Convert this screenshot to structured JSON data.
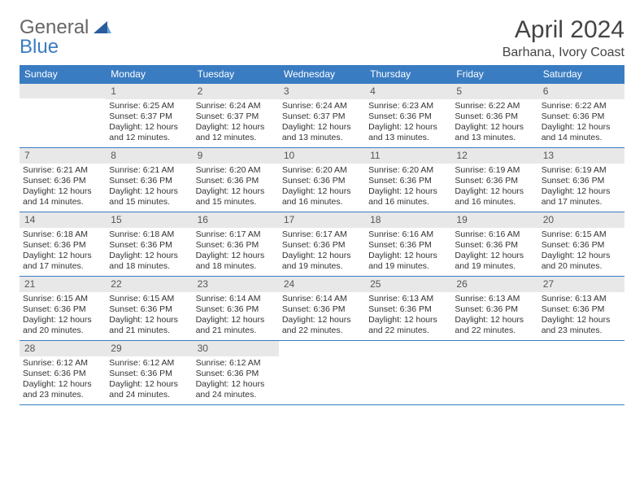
{
  "logo": {
    "general": "General",
    "blue": "Blue"
  },
  "title": "April 2024",
  "location": "Barhana, Ivory Coast",
  "colors": {
    "header_bg": "#3a7cc2",
    "header_text": "#ffffff",
    "daynum_bg": "#e8e8e8",
    "border": "#3a7cc2"
  },
  "day_headers": [
    "Sunday",
    "Monday",
    "Tuesday",
    "Wednesday",
    "Thursday",
    "Friday",
    "Saturday"
  ],
  "weeks": [
    [
      null,
      {
        "n": "1",
        "sr": "Sunrise: 6:25 AM",
        "ss": "Sunset: 6:37 PM",
        "dl1": "Daylight: 12 hours",
        "dl2": "and 12 minutes."
      },
      {
        "n": "2",
        "sr": "Sunrise: 6:24 AM",
        "ss": "Sunset: 6:37 PM",
        "dl1": "Daylight: 12 hours",
        "dl2": "and 12 minutes."
      },
      {
        "n": "3",
        "sr": "Sunrise: 6:24 AM",
        "ss": "Sunset: 6:37 PM",
        "dl1": "Daylight: 12 hours",
        "dl2": "and 13 minutes."
      },
      {
        "n": "4",
        "sr": "Sunrise: 6:23 AM",
        "ss": "Sunset: 6:36 PM",
        "dl1": "Daylight: 12 hours",
        "dl2": "and 13 minutes."
      },
      {
        "n": "5",
        "sr": "Sunrise: 6:22 AM",
        "ss": "Sunset: 6:36 PM",
        "dl1": "Daylight: 12 hours",
        "dl2": "and 13 minutes."
      },
      {
        "n": "6",
        "sr": "Sunrise: 6:22 AM",
        "ss": "Sunset: 6:36 PM",
        "dl1": "Daylight: 12 hours",
        "dl2": "and 14 minutes."
      }
    ],
    [
      {
        "n": "7",
        "sr": "Sunrise: 6:21 AM",
        "ss": "Sunset: 6:36 PM",
        "dl1": "Daylight: 12 hours",
        "dl2": "and 14 minutes."
      },
      {
        "n": "8",
        "sr": "Sunrise: 6:21 AM",
        "ss": "Sunset: 6:36 PM",
        "dl1": "Daylight: 12 hours",
        "dl2": "and 15 minutes."
      },
      {
        "n": "9",
        "sr": "Sunrise: 6:20 AM",
        "ss": "Sunset: 6:36 PM",
        "dl1": "Daylight: 12 hours",
        "dl2": "and 15 minutes."
      },
      {
        "n": "10",
        "sr": "Sunrise: 6:20 AM",
        "ss": "Sunset: 6:36 PM",
        "dl1": "Daylight: 12 hours",
        "dl2": "and 16 minutes."
      },
      {
        "n": "11",
        "sr": "Sunrise: 6:20 AM",
        "ss": "Sunset: 6:36 PM",
        "dl1": "Daylight: 12 hours",
        "dl2": "and 16 minutes."
      },
      {
        "n": "12",
        "sr": "Sunrise: 6:19 AM",
        "ss": "Sunset: 6:36 PM",
        "dl1": "Daylight: 12 hours",
        "dl2": "and 16 minutes."
      },
      {
        "n": "13",
        "sr": "Sunrise: 6:19 AM",
        "ss": "Sunset: 6:36 PM",
        "dl1": "Daylight: 12 hours",
        "dl2": "and 17 minutes."
      }
    ],
    [
      {
        "n": "14",
        "sr": "Sunrise: 6:18 AM",
        "ss": "Sunset: 6:36 PM",
        "dl1": "Daylight: 12 hours",
        "dl2": "and 17 minutes."
      },
      {
        "n": "15",
        "sr": "Sunrise: 6:18 AM",
        "ss": "Sunset: 6:36 PM",
        "dl1": "Daylight: 12 hours",
        "dl2": "and 18 minutes."
      },
      {
        "n": "16",
        "sr": "Sunrise: 6:17 AM",
        "ss": "Sunset: 6:36 PM",
        "dl1": "Daylight: 12 hours",
        "dl2": "and 18 minutes."
      },
      {
        "n": "17",
        "sr": "Sunrise: 6:17 AM",
        "ss": "Sunset: 6:36 PM",
        "dl1": "Daylight: 12 hours",
        "dl2": "and 19 minutes."
      },
      {
        "n": "18",
        "sr": "Sunrise: 6:16 AM",
        "ss": "Sunset: 6:36 PM",
        "dl1": "Daylight: 12 hours",
        "dl2": "and 19 minutes."
      },
      {
        "n": "19",
        "sr": "Sunrise: 6:16 AM",
        "ss": "Sunset: 6:36 PM",
        "dl1": "Daylight: 12 hours",
        "dl2": "and 19 minutes."
      },
      {
        "n": "20",
        "sr": "Sunrise: 6:15 AM",
        "ss": "Sunset: 6:36 PM",
        "dl1": "Daylight: 12 hours",
        "dl2": "and 20 minutes."
      }
    ],
    [
      {
        "n": "21",
        "sr": "Sunrise: 6:15 AM",
        "ss": "Sunset: 6:36 PM",
        "dl1": "Daylight: 12 hours",
        "dl2": "and 20 minutes."
      },
      {
        "n": "22",
        "sr": "Sunrise: 6:15 AM",
        "ss": "Sunset: 6:36 PM",
        "dl1": "Daylight: 12 hours",
        "dl2": "and 21 minutes."
      },
      {
        "n": "23",
        "sr": "Sunrise: 6:14 AM",
        "ss": "Sunset: 6:36 PM",
        "dl1": "Daylight: 12 hours",
        "dl2": "and 21 minutes."
      },
      {
        "n": "24",
        "sr": "Sunrise: 6:14 AM",
        "ss": "Sunset: 6:36 PM",
        "dl1": "Daylight: 12 hours",
        "dl2": "and 22 minutes."
      },
      {
        "n": "25",
        "sr": "Sunrise: 6:13 AM",
        "ss": "Sunset: 6:36 PM",
        "dl1": "Daylight: 12 hours",
        "dl2": "and 22 minutes."
      },
      {
        "n": "26",
        "sr": "Sunrise: 6:13 AM",
        "ss": "Sunset: 6:36 PM",
        "dl1": "Daylight: 12 hours",
        "dl2": "and 22 minutes."
      },
      {
        "n": "27",
        "sr": "Sunrise: 6:13 AM",
        "ss": "Sunset: 6:36 PM",
        "dl1": "Daylight: 12 hours",
        "dl2": "and 23 minutes."
      }
    ],
    [
      {
        "n": "28",
        "sr": "Sunrise: 6:12 AM",
        "ss": "Sunset: 6:36 PM",
        "dl1": "Daylight: 12 hours",
        "dl2": "and 23 minutes."
      },
      {
        "n": "29",
        "sr": "Sunrise: 6:12 AM",
        "ss": "Sunset: 6:36 PM",
        "dl1": "Daylight: 12 hours",
        "dl2": "and 24 minutes."
      },
      {
        "n": "30",
        "sr": "Sunrise: 6:12 AM",
        "ss": "Sunset: 6:36 PM",
        "dl1": "Daylight: 12 hours",
        "dl2": "and 24 minutes."
      },
      null,
      null,
      null,
      null
    ]
  ]
}
